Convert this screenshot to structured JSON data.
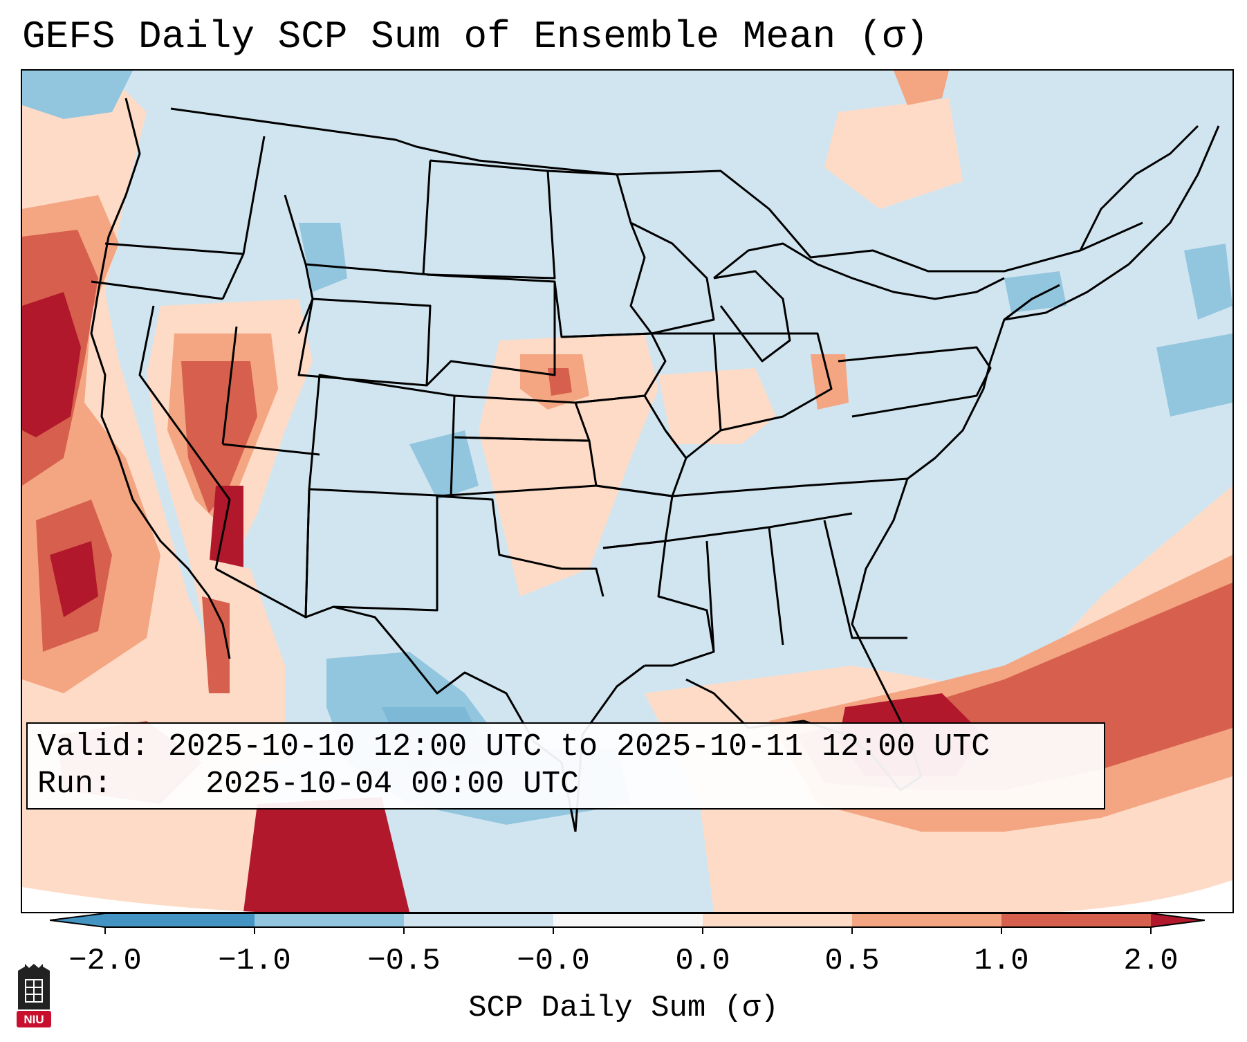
{
  "title": "GEFS Daily SCP Sum of Ensemble Mean (σ)",
  "info": {
    "valid_label": "Valid:",
    "valid_value": "2025-10-10 12:00 UTC to 2025-10-11 12:00 UTC",
    "run_label": "Run:",
    "run_value": "2025-10-04 00:00 UTC"
  },
  "colorbar": {
    "label": "SCP Daily Sum (σ)",
    "ticks": [
      "−2.0",
      "−1.0",
      "−0.5",
      "−0.0",
      "0.0",
      "0.5",
      "1.0",
      "2.0"
    ],
    "colors": [
      "#4393c3",
      "#92c5de",
      "#d1e5f0",
      "#f7f7f7",
      "#fddbc7",
      "#f4a582",
      "#d6604d",
      "#b2182b"
    ]
  },
  "logo": {
    "text": "NIU",
    "color": "#c8102e"
  },
  "palette": {
    "ocean_background": "#d1e5f0",
    "neg_strong": "#4393c3",
    "neg_mid": "#92c5de",
    "neutral": "#d1e5f0",
    "pos_weak": "#fddbc7",
    "pos_mid": "#f4a582",
    "pos_strong": "#d6604d",
    "pos_max": "#b2182b"
  }
}
